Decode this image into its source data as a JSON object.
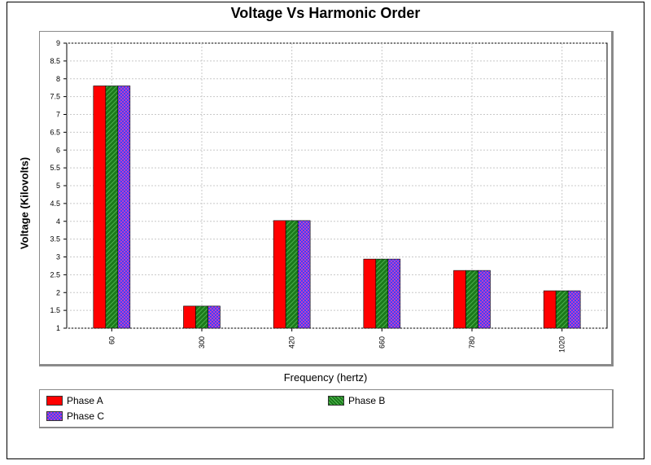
{
  "chart_data": {
    "type": "bar",
    "title": "Voltage Vs Harmonic Order",
    "xlabel": "Frequency (hertz)",
    "ylabel": "Voltage (Kilovolts)",
    "categories": [
      "60",
      "300",
      "420",
      "660",
      "780",
      "1020"
    ],
    "ylim": [
      1,
      9
    ],
    "yticks": [
      "1",
      "1.5",
      "2",
      "2.5",
      "3",
      "3.5",
      "4",
      "4.5",
      "5",
      "5.5",
      "6",
      "6.5",
      "7",
      "7.5",
      "8",
      "8.5",
      "9"
    ],
    "grid": true,
    "legend_position": "bottom",
    "series": [
      {
        "name": "Phase A",
        "color": "#ff0000",
        "values": [
          7.8,
          1.62,
          4.02,
          2.94,
          2.62,
          2.05
        ]
      },
      {
        "name": "Phase B",
        "color": "#1a7a1a",
        "values": [
          7.8,
          1.62,
          4.02,
          2.94,
          2.62,
          2.05
        ]
      },
      {
        "name": "Phase C",
        "color": "#4040ff",
        "values": [
          7.8,
          1.62,
          4.02,
          2.94,
          2.62,
          2.05
        ]
      }
    ]
  }
}
